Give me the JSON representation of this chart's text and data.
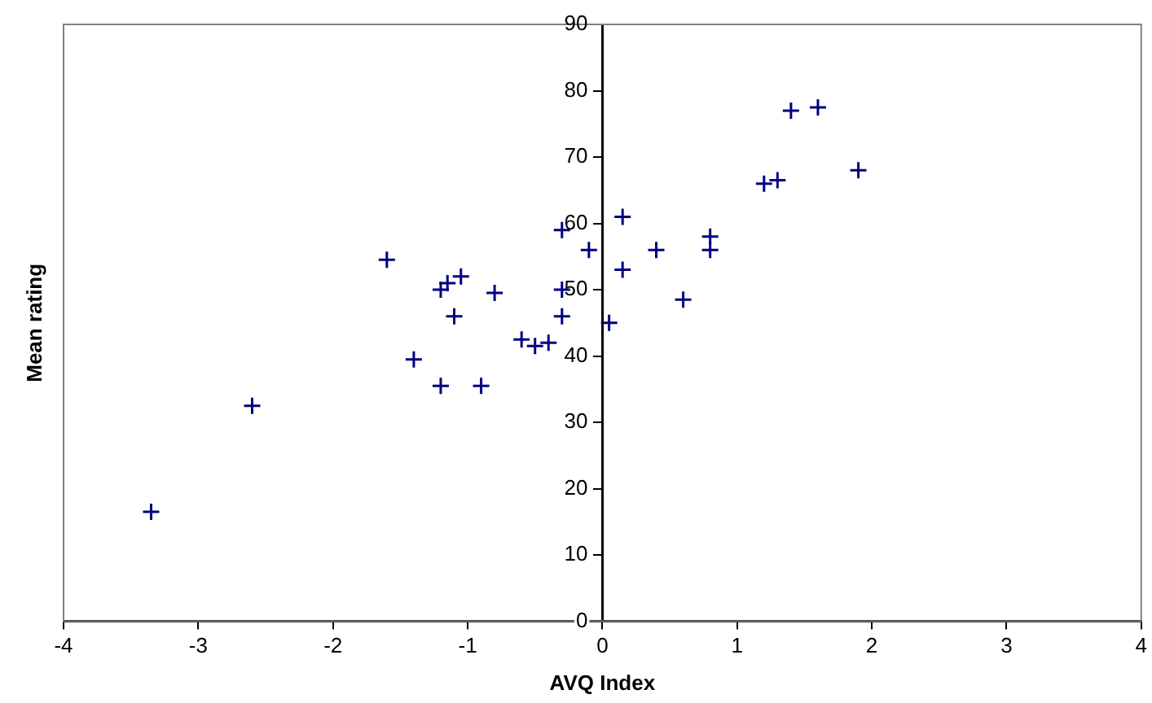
{
  "chart_data": {
    "type": "scatter",
    "xlabel": "AVQ Index",
    "ylabel": "Mean rating",
    "series": [
      {
        "color": "#000080",
        "x": [
          -3.35,
          -2.6,
          -1.6,
          -1.4,
          -1.2,
          -1.2,
          -1.15,
          -1.1,
          -1.05,
          -0.9,
          -0.8,
          -0.6,
          -0.5,
          -0.4,
          -0.3,
          -0.3,
          -0.3,
          -0.1,
          0.05,
          0.15,
          0.15,
          0.4,
          0.6,
          0.8,
          0.8,
          1.2,
          1.3,
          1.4,
          1.6,
          1.9
        ],
        "values": [
          16.5,
          32.5,
          54.5,
          39.5,
          35.5,
          50,
          51,
          46,
          52,
          35.5,
          49.5,
          42.5,
          41.5,
          42,
          46,
          50,
          59,
          56,
          45,
          61,
          53,
          56,
          48.5,
          58,
          56,
          66,
          66.5,
          77,
          77.5,
          68
        ]
      }
    ],
    "xlim": [
      -4,
      4
    ],
    "xticks": [
      -4,
      -3,
      -2,
      -1,
      0,
      1,
      2,
      3,
      4
    ],
    "ylim": [
      0,
      90
    ],
    "yticks": [
      0,
      10,
      20,
      30,
      40,
      50,
      60,
      70,
      80,
      90
    ],
    "grid": false,
    "legend": false,
    "marker": "cross"
  }
}
